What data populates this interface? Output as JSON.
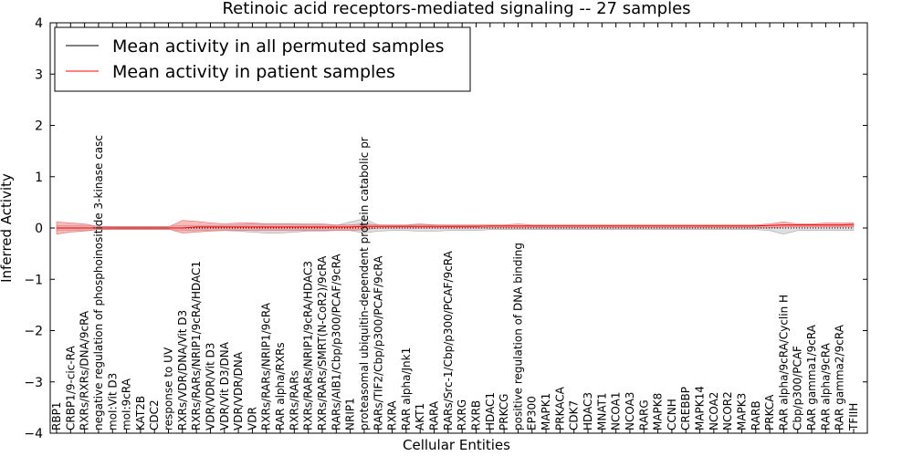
{
  "chart_data": {
    "type": "line",
    "title": "Retinoic acid receptors-mediated signaling -- 27 samples",
    "xlabel": "Cellular Entities",
    "ylabel": "Inferred Activity",
    "ylim": [
      -4,
      4
    ],
    "yticks": [
      "−4",
      "−3",
      "−2",
      "−1",
      "0",
      "1",
      "2",
      "3",
      "4"
    ],
    "grid": false,
    "legend_position": "top-left",
    "colors": {
      "permuted": "#000000",
      "patient": "#ff0000",
      "patient_band": "#f08080",
      "permuted_band": "#c8c8c8"
    },
    "categories": [
      "RBP1",
      "CRBP1/9-cic-RA",
      "RXRs/RXRs/DNA/9cRA",
      "negative regulation of phosphoinositide 3-kinase casc",
      "moI:Vit D3",
      "moI:9cRA",
      "KAT2B",
      "CDC2",
      "response to UV",
      "RXRs/VDR/DNA/Vit D3",
      "RXRs/RARs/NRIP1/9cRA/HDAC1",
      "VDR/VDR/Vit D3",
      "VDR/Vit D3/DNA",
      "VDR/VDR/DNA",
      "VDR",
      "RXRs/RARs/NRIP1/9cRA",
      "RAR alpha/RXRs",
      "RXRs/RARs",
      "RXRs/RARs/NRIP1/9cRA/HDAC3",
      "RXRs/RARs/SMRT(N-CoR2)/9cRA",
      "RARs/AIB1/Cbp/p300/PCAF/9cRA",
      "NRIP1",
      "proteasomal ubiquitin-dependent protein catabolic pr",
      "RARs/TIF2/Cbp/p300/PCAF/9cRA",
      "RXRA",
      "RAR alpha/Jnk1",
      "AKT1",
      "RARA",
      "RARs/Src-1/Cbp/p300/PCAF/9cRA",
      "RXRG",
      "RXRB",
      "HDAC1",
      "PRKCG",
      "positive regulation of DNA binding",
      "EP300",
      "MAPK1",
      "PRKACA",
      "CDK7",
      "HDAC3",
      "MNAT1",
      "NCOA1",
      "NCOA3",
      "RARG",
      "MAPK8",
      "CCNH",
      "CREBBP",
      "MAPK14",
      "NCOA2",
      "NCOR2",
      "MAPK3",
      "RARB",
      "PRKCA",
      "RAR alpha/9cRA/Cyclin H",
      "Cbp/p300/PCAF",
      "RAR gamma1/9cRA",
      "RAR alpha/9cRA",
      "RAR gamma2/9cRA",
      "TFIIH"
    ],
    "series": [
      {
        "name": "Mean activity in all permuted samples",
        "values": [
          0,
          0,
          0,
          0,
          0,
          0,
          0,
          0,
          0,
          0,
          0,
          0,
          0,
          0,
          0,
          0,
          0,
          0,
          0,
          0,
          0,
          0,
          0,
          0,
          0,
          0,
          0,
          0,
          0,
          0,
          0,
          0,
          0,
          0,
          0,
          0,
          0,
          0,
          0,
          0,
          0,
          0,
          0,
          0,
          0,
          0,
          0,
          0,
          0,
          0,
          0,
          0,
          0,
          0,
          0,
          0,
          0,
          0
        ],
        "lower": [
          -0.05,
          -0.05,
          -0.05,
          -0.03,
          -0.03,
          -0.03,
          -0.03,
          -0.03,
          -0.03,
          -0.05,
          -0.05,
          -0.05,
          -0.05,
          -0.06,
          -0.08,
          -0.1,
          -0.1,
          -0.08,
          -0.06,
          -0.06,
          -0.05,
          -0.05,
          -0.1,
          -0.06,
          -0.05,
          -0.05,
          -0.06,
          -0.06,
          -0.05,
          -0.05,
          -0.05,
          -0.03,
          -0.03,
          -0.03,
          -0.03,
          -0.03,
          -0.03,
          -0.03,
          -0.03,
          -0.03,
          -0.03,
          -0.03,
          -0.03,
          -0.03,
          -0.03,
          -0.03,
          -0.03,
          -0.03,
          -0.03,
          -0.03,
          -0.03,
          -0.05,
          -0.12,
          -0.05,
          -0.05,
          -0.05,
          -0.05,
          -0.05
        ],
        "upper": [
          0.05,
          0.05,
          0.05,
          0.03,
          0.03,
          0.03,
          0.03,
          0.03,
          0.03,
          0.05,
          0.05,
          0.05,
          0.05,
          0.06,
          0.08,
          0.08,
          0.08,
          0.08,
          0.06,
          0.06,
          0.05,
          0.12,
          0.18,
          0.06,
          0.05,
          0.05,
          0.06,
          0.06,
          0.05,
          0.05,
          0.05,
          0.03,
          0.03,
          0.03,
          0.03,
          0.03,
          0.03,
          0.03,
          0.03,
          0.03,
          0.03,
          0.03,
          0.03,
          0.03,
          0.03,
          0.03,
          0.03,
          0.03,
          0.03,
          0.03,
          0.03,
          0.05,
          0.05,
          0.05,
          0.05,
          0.05,
          0.05,
          0.05
        ]
      },
      {
        "name": "Mean activity in patient samples",
        "values": [
          0,
          0,
          0,
          0,
          0,
          0,
          0,
          0,
          0,
          0,
          0.02,
          0.02,
          0.02,
          0.02,
          0.02,
          0.02,
          0.02,
          0.02,
          0.02,
          0.02,
          0.02,
          0.02,
          0.03,
          0.03,
          0.03,
          0.03,
          0.03,
          0.03,
          0.03,
          0.03,
          0.03,
          0.04,
          0.04,
          0.04,
          0.04,
          0.04,
          0.04,
          0.04,
          0.04,
          0.04,
          0.04,
          0.04,
          0.04,
          0.04,
          0.04,
          0.04,
          0.04,
          0.04,
          0.04,
          0.04,
          0.04,
          0.05,
          0.06,
          0.06,
          0.06,
          0.06,
          0.06,
          0.07
        ],
        "lower": [
          -0.12,
          -0.08,
          -0.06,
          -0.03,
          -0.02,
          -0.02,
          -0.02,
          -0.02,
          -0.02,
          -0.1,
          -0.08,
          -0.06,
          -0.05,
          -0.05,
          -0.05,
          -0.05,
          -0.05,
          -0.05,
          -0.05,
          -0.05,
          -0.05,
          -0.05,
          -0.03,
          0,
          0,
          0,
          0,
          0,
          0,
          0,
          0,
          0,
          0,
          0,
          0,
          0,
          0,
          0,
          0,
          0,
          0,
          0,
          0,
          0,
          0,
          0,
          0,
          0,
          0,
          0,
          0,
          0,
          0.02,
          0.02,
          0.02,
          0.02,
          0.02,
          0.02
        ],
        "upper": [
          0.12,
          0.1,
          0.08,
          0.03,
          0.02,
          0.02,
          0.02,
          0.02,
          0.02,
          0.15,
          0.13,
          0.1,
          0.08,
          0.1,
          0.1,
          0.08,
          0.08,
          0.08,
          0.08,
          0.08,
          0.06,
          0.06,
          0.08,
          0.06,
          0.06,
          0.06,
          0.08,
          0.06,
          0.06,
          0.06,
          0.06,
          0.06,
          0.06,
          0.08,
          0.06,
          0.06,
          0.06,
          0.06,
          0.06,
          0.06,
          0.06,
          0.06,
          0.06,
          0.06,
          0.06,
          0.06,
          0.06,
          0.06,
          0.06,
          0.06,
          0.06,
          0.08,
          0.12,
          0.08,
          0.08,
          0.1,
          0.1,
          0.1
        ]
      }
    ]
  }
}
